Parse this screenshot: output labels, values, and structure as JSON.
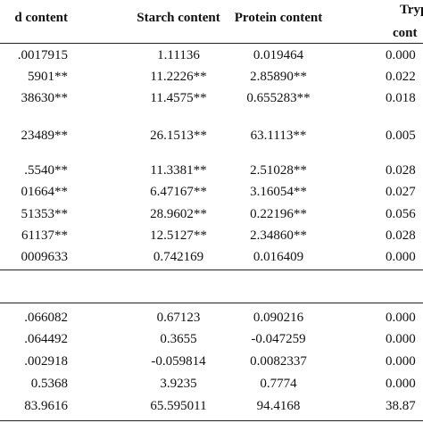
{
  "table": {
    "header": [
      "d content",
      "Starch content",
      "Protein content"
    ],
    "last_header_lines": [
      "Trypto",
      "cont"
    ],
    "rows": [
      [
        ".0017915",
        "1.11136",
        "0.019464",
        "0.000"
      ],
      [
        "5901**",
        "11.2226**",
        "2.85890**",
        "0.022"
      ],
      [
        "38630**",
        "11.4575**",
        "0.655283**",
        "0.018"
      ],
      [
        "23489**",
        "26.1513**",
        "63.1113**",
        "0.005"
      ],
      [
        ".5540**",
        "11.3381**",
        "2.51028**",
        "0.028"
      ],
      [
        "01664**",
        "6.47167**",
        "3.16054**",
        "0.027"
      ],
      [
        "51353**",
        "28.9602**",
        "0.22196**",
        "0.056"
      ],
      [
        "61137**",
        "12.5127**",
        "2.34860**",
        "0.028"
      ],
      [
        "0009633",
        "0.742169",
        "0.016409",
        "0.000"
      ],
      [
        ".066082",
        "0.67123",
        "0.090216",
        "0.000"
      ],
      [
        ".064492",
        "0.3655",
        "-0.047259",
        "0.000"
      ],
      [
        ".002918",
        "-0.059814",
        "0.0082337",
        "0.000"
      ],
      [
        "0.5368",
        "3.9235",
        "0.7774",
        "0.000"
      ],
      [
        "83.9616",
        "65.595011",
        "94.4168",
        "38.87"
      ]
    ]
  }
}
